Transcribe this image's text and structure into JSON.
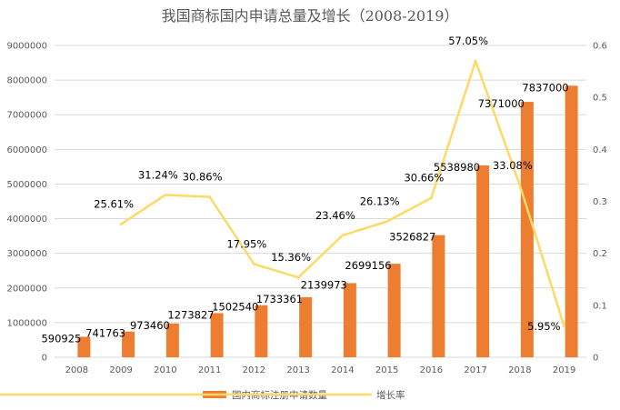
{
  "chart_data": {
    "type": "bar+line",
    "title": "我国商标国内申请总量及增长（2008-2019）",
    "categories": [
      "2008",
      "2009",
      "2010",
      "2011",
      "2012",
      "2013",
      "2014",
      "2015",
      "2016",
      "2017",
      "2018",
      "2019"
    ],
    "series": [
      {
        "name": "国内商标注册申请数量",
        "type": "bar",
        "axis": "left",
        "color": "#ED7D31",
        "values": [
          590925,
          741763,
          973460,
          1273827,
          1502540,
          1733361,
          2139973,
          2699156,
          3526827,
          5538980,
          7371000,
          7837000
        ],
        "labels": [
          "590925",
          "741763",
          "973460",
          "1273827",
          "1502540",
          "1733361",
          "2139973",
          "2699156",
          "3526827",
          "5538980",
          "7371000",
          "7837000"
        ]
      },
      {
        "name": "增长率",
        "type": "line",
        "axis": "right",
        "color": "#FFD966",
        "values": [
          null,
          0.2561,
          0.3124,
          0.3086,
          0.1795,
          0.1536,
          0.2346,
          0.2613,
          0.3066,
          0.5705,
          0.3308,
          0.0595
        ],
        "labels": [
          null,
          "25.61%",
          "31.24%",
          "30.86%",
          "17.95%",
          "15.36%",
          "23.46%",
          "26.13%",
          "30.66%",
          "57.05%",
          "33.08%",
          "5.95%"
        ]
      }
    ],
    "y_left": {
      "min": 0,
      "max": 9000000,
      "step": 1000000,
      "ticks": [
        "0",
        "1000000",
        "2000000",
        "3000000",
        "4000000",
        "5000000",
        "6000000",
        "7000000",
        "8000000",
        "9000000"
      ]
    },
    "y_right": {
      "min": 0,
      "max": 0.6,
      "step": 0.1,
      "ticks": [
        "0",
        "0.1",
        "0.2",
        "0.3",
        "0.4",
        "0.5",
        "0.6"
      ]
    },
    "grid": true,
    "legend_position": "bottom",
    "axis_color": "#D9D9D9",
    "text_color": "#595959"
  }
}
